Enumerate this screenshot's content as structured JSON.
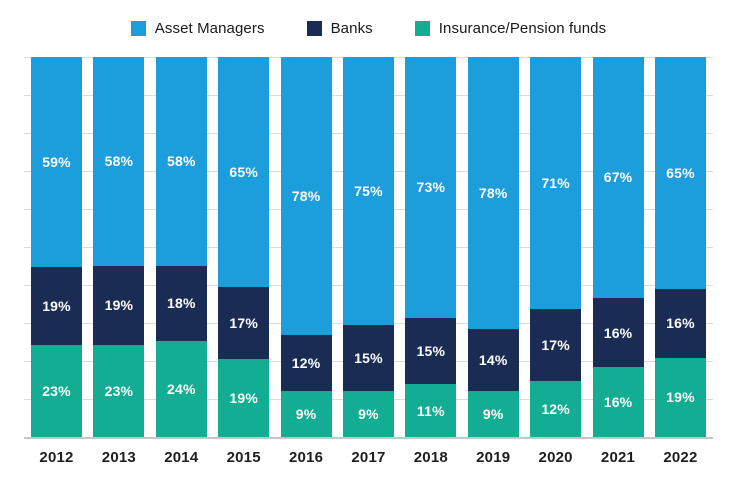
{
  "chart_data": {
    "type": "bar",
    "variant": "stacked-100-percent",
    "categories": [
      "2012",
      "2013",
      "2014",
      "2015",
      "2016",
      "2017",
      "2018",
      "2019",
      "2020",
      "2021",
      "2022"
    ],
    "series": [
      {
        "name": "Asset Managers",
        "color": "#1c9ddc",
        "values": [
          59,
          58,
          58,
          65,
          78,
          75,
          73,
          78,
          71,
          67,
          65
        ]
      },
      {
        "name": "Banks",
        "color": "#1b2c54",
        "values": [
          19,
          19,
          18,
          17,
          12,
          15,
          15,
          14,
          17,
          16,
          16
        ]
      },
      {
        "name": "Insurance/Pension funds",
        "color": "#12ad92",
        "values": [
          23,
          23,
          24,
          19,
          9,
          9,
          11,
          9,
          12,
          16,
          19
        ]
      }
    ],
    "value_label_format": "{v}%",
    "title": "",
    "xlabel": "",
    "ylabel": "",
    "ylim": [
      0,
      100
    ],
    "grid": true,
    "gridline_interval": 10,
    "legend_position": "top"
  },
  "colors": {
    "background": "#ffffff",
    "gridline": "#dbdbdb",
    "axis_line": "#c6c6c6",
    "value_label": "#ffffff",
    "category_label": "#1e1e1e",
    "legend_label": "#1a1a1a"
  }
}
